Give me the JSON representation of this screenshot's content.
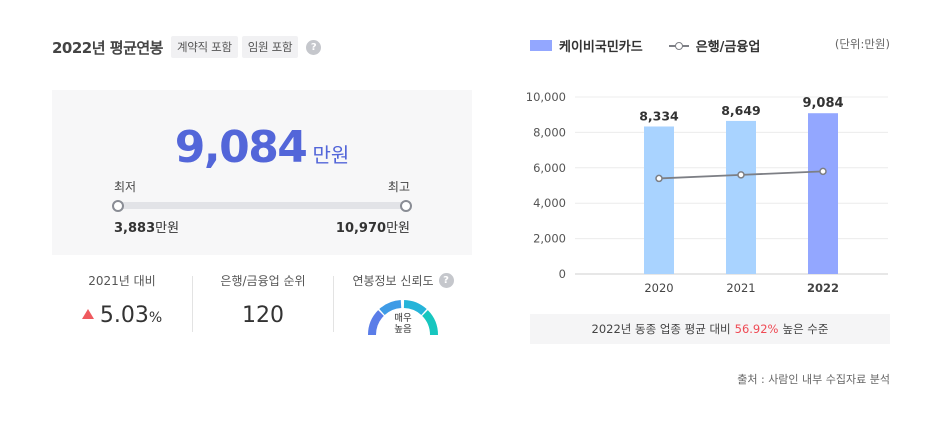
{
  "header": {
    "title": "2022년 평균연봉",
    "tags": [
      "계약직 포함",
      "임원 포함"
    ],
    "help": "?"
  },
  "salary": {
    "value": "9,084",
    "unit": "만원",
    "min_label": "최저",
    "max_label": "최고",
    "min_value": "3,883",
    "max_value": "10,970",
    "range_unit": "만원"
  },
  "stats": {
    "yoy_label": "2021년 대비",
    "yoy_value": "5.03",
    "yoy_unit": "%",
    "rank_label": "은행/금융업 순위",
    "rank_value": "120",
    "reliability_label": "연봉정보 신뢰도",
    "reliability_value_line1": "매우",
    "reliability_value_line2": "높음"
  },
  "chart_panel": {
    "legend_bar": "케이비국민카드",
    "legend_line": "은행/금융업",
    "unit_note": "(단위:만원)",
    "summary_prefix": "2022년 동종 업종 평균 대비",
    "summary_highlight": "56.92%",
    "summary_suffix": "높은 수준",
    "source": "출처 : 사람인 내부 수집자료 분석"
  },
  "colors": {
    "accent": "#5366d9",
    "bar_past": "#a9d3ff",
    "bar_current": "#93a7ff",
    "line": "#7d7f85",
    "highlight": "#ef4a54",
    "up": "#ef5a5f"
  },
  "chart_data": {
    "type": "bar",
    "categories": [
      "2020",
      "2021",
      "2022"
    ],
    "series": [
      {
        "name": "케이비국민카드",
        "type": "bar",
        "values": [
          8334,
          8649,
          9084
        ],
        "labels": [
          "8,334",
          "8,649",
          "9,084"
        ]
      },
      {
        "name": "은행/금융업",
        "type": "line",
        "values": [
          5400,
          5600,
          5800
        ]
      }
    ],
    "yticks": [
      "10,000",
      "8,000",
      "6,000",
      "4,000",
      "2,000",
      "0"
    ],
    "ylim": [
      0,
      10000
    ],
    "grid": true
  }
}
